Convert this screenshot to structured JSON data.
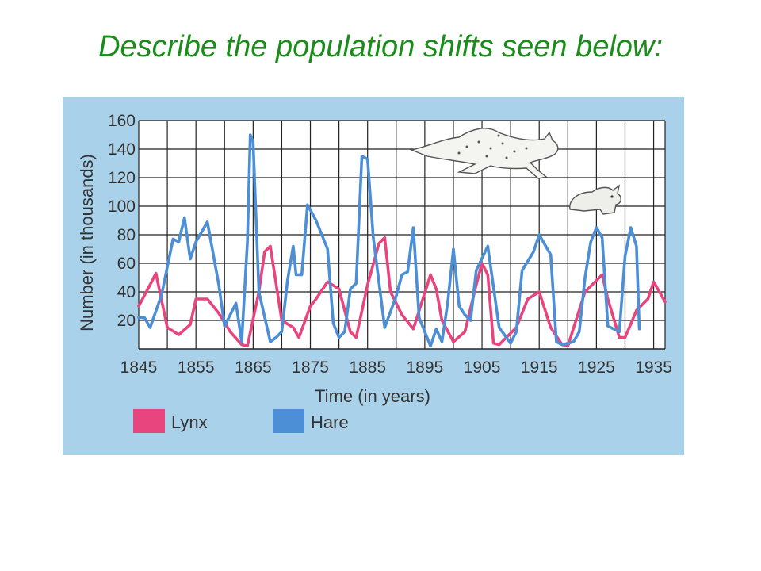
{
  "slide": {
    "title": "Describe the population shifts seen below:"
  },
  "chart_data": {
    "type": "line",
    "title": "",
    "xlabel": "Time (in years)",
    "ylabel": "Number (in thousands)",
    "xlim": [
      1845,
      1937
    ],
    "ylim": [
      0,
      160
    ],
    "x_ticks": [
      1845,
      1855,
      1865,
      1875,
      1885,
      1895,
      1905,
      1915,
      1925,
      1935
    ],
    "y_ticks": [
      20,
      40,
      60,
      80,
      100,
      120,
      140,
      160
    ],
    "grid": true,
    "legend_position": "bottom-left",
    "series": [
      {
        "name": "Lynx",
        "color": "#e8457f",
        "points": [
          [
            1845,
            30
          ],
          [
            1847,
            45
          ],
          [
            1848,
            53
          ],
          [
            1850,
            15
          ],
          [
            1852,
            10
          ],
          [
            1854,
            17
          ],
          [
            1855,
            35
          ],
          [
            1857,
            35
          ],
          [
            1859,
            25
          ],
          [
            1861,
            12
          ],
          [
            1863,
            3
          ],
          [
            1864,
            2
          ],
          [
            1866,
            40
          ],
          [
            1867,
            68
          ],
          [
            1868,
            72
          ],
          [
            1870,
            20
          ],
          [
            1872,
            15
          ],
          [
            1873,
            8
          ],
          [
            1875,
            30
          ],
          [
            1876,
            35
          ],
          [
            1878,
            47
          ],
          [
            1880,
            42
          ],
          [
            1882,
            12
          ],
          [
            1883,
            8
          ],
          [
            1885,
            45
          ],
          [
            1887,
            74
          ],
          [
            1888,
            78
          ],
          [
            1889,
            40
          ],
          [
            1891,
            24
          ],
          [
            1893,
            14
          ],
          [
            1896,
            52
          ],
          [
            1897,
            42
          ],
          [
            1898,
            20
          ],
          [
            1900,
            5
          ],
          [
            1902,
            12
          ],
          [
            1904,
            45
          ],
          [
            1905,
            60
          ],
          [
            1906,
            52
          ],
          [
            1907,
            4
          ],
          [
            1908,
            3
          ],
          [
            1911,
            15
          ],
          [
            1913,
            35
          ],
          [
            1915,
            40
          ],
          [
            1917,
            15
          ],
          [
            1919,
            3
          ],
          [
            1920,
            2
          ],
          [
            1923,
            40
          ],
          [
            1925,
            48
          ],
          [
            1926,
            52
          ],
          [
            1927,
            35
          ],
          [
            1929,
            8
          ],
          [
            1930,
            8
          ],
          [
            1932,
            27
          ],
          [
            1934,
            35
          ],
          [
            1935,
            47
          ],
          [
            1937,
            33
          ]
        ]
      },
      {
        "name": "Hare",
        "color": "#4d8fd6",
        "points": [
          [
            1845,
            22
          ],
          [
            1846,
            22
          ],
          [
            1847,
            15
          ],
          [
            1849,
            38
          ],
          [
            1851,
            77
          ],
          [
            1852,
            75
          ],
          [
            1853,
            92
          ],
          [
            1854,
            63
          ],
          [
            1855,
            75
          ],
          [
            1857,
            89
          ],
          [
            1859,
            45
          ],
          [
            1860,
            16
          ],
          [
            1862,
            32
          ],
          [
            1863,
            5
          ],
          [
            1864,
            75
          ],
          [
            1864.5,
            150
          ],
          [
            1865,
            145
          ],
          [
            1866,
            40
          ],
          [
            1868,
            5
          ],
          [
            1869,
            8
          ],
          [
            1870,
            12
          ],
          [
            1871,
            48
          ],
          [
            1872,
            72
          ],
          [
            1872.5,
            52
          ],
          [
            1873.5,
            52
          ],
          [
            1874.5,
            101
          ],
          [
            1876,
            90
          ],
          [
            1878,
            70
          ],
          [
            1879,
            18
          ],
          [
            1880,
            8
          ],
          [
            1881,
            12
          ],
          [
            1882,
            42
          ],
          [
            1883,
            46
          ],
          [
            1884,
            135
          ],
          [
            1885,
            133
          ],
          [
            1886,
            78
          ],
          [
            1888,
            15
          ],
          [
            1890,
            37
          ],
          [
            1891,
            52
          ],
          [
            1892,
            54
          ],
          [
            1893,
            85
          ],
          [
            1894,
            22
          ],
          [
            1896,
            2
          ],
          [
            1897,
            14
          ],
          [
            1898,
            5
          ],
          [
            1899,
            32
          ],
          [
            1900,
            70
          ],
          [
            1901,
            30
          ],
          [
            1902,
            24
          ],
          [
            1903,
            20
          ],
          [
            1904,
            55
          ],
          [
            1906,
            72
          ],
          [
            1908,
            15
          ],
          [
            1910,
            4
          ],
          [
            1911,
            12
          ],
          [
            1912,
            55
          ],
          [
            1914,
            68
          ],
          [
            1915,
            80
          ],
          [
            1917,
            66
          ],
          [
            1918,
            5
          ],
          [
            1919,
            3
          ],
          [
            1921,
            5
          ],
          [
            1922,
            12
          ],
          [
            1923,
            50
          ],
          [
            1924,
            75
          ],
          [
            1925,
            85
          ],
          [
            1926,
            78
          ],
          [
            1927,
            16
          ],
          [
            1928,
            14
          ],
          [
            1929,
            12
          ],
          [
            1930,
            65
          ],
          [
            1931,
            85
          ],
          [
            1932,
            72
          ],
          [
            1932.5,
            14
          ]
        ]
      }
    ]
  }
}
